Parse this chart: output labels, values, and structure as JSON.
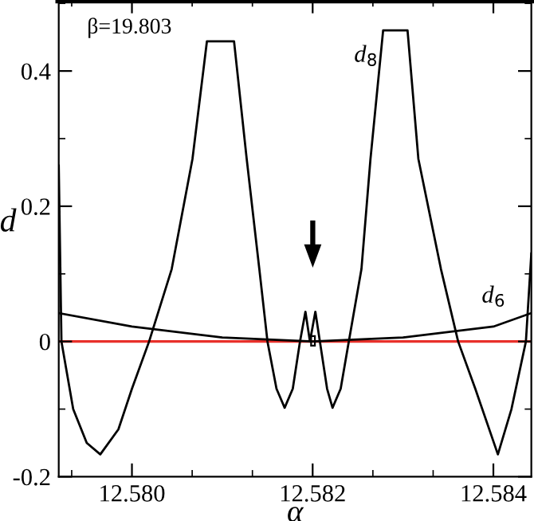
{
  "chart_data": {
    "type": "line",
    "xlabel": "α",
    "ylabel": "d",
    "annotations": [
      "β=19.803",
      "d$_{8}$",
      "d$_{6}$"
    ],
    "series": [
      {
        "color": "#000000",
        "x": [
          12.57919,
          12.57922,
          12.57935,
          12.5795,
          12.57965,
          12.57985,
          12.58,
          12.58019,
          12.58044,
          12.58067,
          12.58083,
          12.58113,
          12.58127,
          12.58141,
          12.5815,
          12.5816,
          12.58169,
          12.58178,
          12.58186,
          12.58192,
          12.58197,
          12.58203,
          12.58208,
          12.58216,
          12.58222,
          12.58231,
          12.5824,
          12.58254,
          12.58264,
          12.58278,
          12.58305,
          12.58317,
          12.58342,
          12.58361,
          12.5838,
          12.58405,
          12.5842,
          12.58436,
          12.58442
        ],
        "values": [
          0.26,
          0.0,
          -0.1,
          -0.15,
          -0.167,
          -0.13,
          -0.07,
          0.0,
          0.107,
          0.27,
          0.444,
          0.444,
          0.27,
          0.107,
          0.0,
          -0.07,
          -0.098,
          -0.07,
          0.0,
          0.044,
          0.0,
          0.044,
          0.0,
          -0.07,
          -0.098,
          -0.07,
          0.0,
          0.107,
          0.27,
          0.46,
          0.46,
          0.27,
          0.107,
          0.0,
          -0.07,
          -0.167,
          -0.1,
          0.0,
          0.13
        ]
      },
      {
        "color": "#000000",
        "x": [
          12.57919,
          12.58,
          12.581,
          12.582,
          12.583,
          12.584,
          12.58442
        ],
        "values": [
          0.042,
          0.022,
          0.006,
          0.0,
          0.006,
          0.022,
          0.042
        ]
      }
    ],
    "xlim": [
      12.57919,
      12.58442
    ],
    "ylim": [
      -0.2,
      0.505
    ],
    "xticks": [
      {
        "value": 12.58,
        "label": "12.580"
      },
      {
        "value": 12.582,
        "label": "12.582"
      },
      {
        "value": 12.584,
        "label": "12.584"
      }
    ],
    "yticks": [
      {
        "value": -0.2,
        "label": "-0.2"
      },
      0,
      0.2,
      0.4
    ],
    "ref_lines": [
      {
        "axis": "y",
        "value": 0,
        "color": "#e8302a"
      }
    ],
    "grid": false,
    "legend": false,
    "marker": "none",
    "line_style": "solid"
  }
}
